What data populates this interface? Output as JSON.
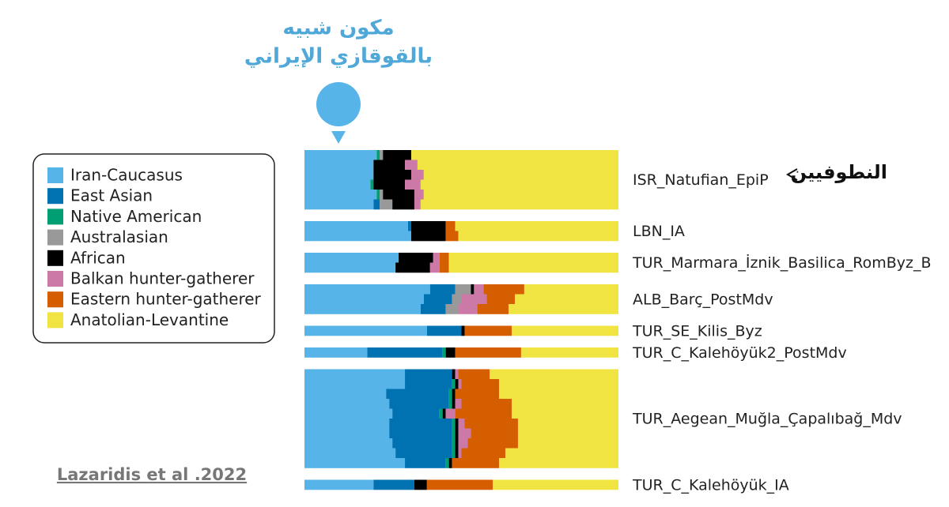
{
  "chart_data": {
    "type": "admixture",
    "annotation": [
      "مكون شبيه",
      "بالقوقازي الإيراني"
    ],
    "pointer_label": "النطوفيين",
    "source": "Lazaridis et al .2022",
    "series": [
      {
        "name": "Iran-Caucasus",
        "color": "#56b4e9"
      },
      {
        "name": "East Asian",
        "color": "#0072b2"
      },
      {
        "name": "Native American",
        "color": "#009e73"
      },
      {
        "name": "Australasian",
        "color": "#999999"
      },
      {
        "name": "African",
        "color": "#000000"
      },
      {
        "name": "Balkan hunter-gatherer",
        "color": "#cc79a7"
      },
      {
        "name": "Eastern hunter-gatherer",
        "color": "#d55e00"
      },
      {
        "name": "Anatolian-Levantine",
        "color": "#f0e442"
      }
    ],
    "groups": [
      {
        "label": "ISR_Natufian_EpiP",
        "rows": [
          [
            23,
            0,
            1,
            1,
            9,
            0,
            0,
            66
          ],
          [
            22,
            0,
            0,
            0,
            10,
            4,
            0,
            64
          ],
          [
            22,
            0,
            0,
            0,
            12,
            4,
            0,
            62
          ],
          [
            21,
            0,
            1,
            0,
            10,
            5,
            0,
            63
          ],
          [
            23,
            0,
            1,
            1,
            10,
            3,
            0,
            62
          ],
          [
            22,
            2,
            0,
            4,
            7,
            2,
            0,
            63
          ]
        ]
      },
      {
        "label": "LBN_IA",
        "rows": [
          [
            33,
            1,
            0,
            0,
            11,
            0,
            3,
            52
          ],
          [
            34,
            0,
            0,
            0,
            11,
            0,
            4,
            51
          ]
        ]
      },
      {
        "label": "TUR_Marmara_İznik_Basilica_RomByz_B",
        "rows": [
          [
            30,
            0,
            0,
            0,
            11,
            2,
            3,
            54
          ],
          [
            29,
            0,
            0,
            0,
            11,
            3,
            3,
            54
          ]
        ]
      },
      {
        "label": "ALB_Barç_PostMdv",
        "rows": [
          [
            40,
            8,
            0,
            5,
            1,
            3,
            13,
            30
          ],
          [
            38,
            9,
            0,
            3,
            0,
            8,
            9,
            33
          ],
          [
            37,
            8,
            0,
            4,
            0,
            6,
            10,
            35
          ]
        ]
      },
      {
        "label": "TUR_SE_Kilis_Byz",
        "rows": [
          [
            39,
            11,
            0,
            0,
            1,
            0,
            15,
            34
          ]
        ]
      },
      {
        "label": "TUR_C_Kalehöyük2_PostMdv",
        "rows": [
          [
            20,
            24,
            1,
            0,
            3,
            0,
            21,
            31
          ]
        ]
      },
      {
        "label": "TUR_Aegean_Muğla_Çapalıbağ_Mdv",
        "rows": [
          [
            32,
            15,
            0,
            0,
            1,
            1,
            10,
            41
          ],
          [
            32,
            15,
            1,
            0,
            1,
            1,
            12,
            38
          ],
          [
            26,
            20,
            1,
            0,
            1,
            0,
            14,
            38
          ],
          [
            27,
            19,
            1,
            0,
            1,
            2,
            16,
            34
          ],
          [
            28,
            15,
            1,
            0,
            1,
            3,
            18,
            34
          ],
          [
            27,
            20,
            1,
            0,
            1,
            2,
            17,
            32
          ],
          [
            27,
            20,
            1,
            0,
            1,
            4,
            15,
            32
          ],
          [
            28,
            19,
            1,
            0,
            1,
            3,
            16,
            32
          ],
          [
            29,
            18,
            1,
            0,
            1,
            1,
            14,
            36
          ],
          [
            32,
            13,
            1,
            0,
            1,
            0,
            15,
            38
          ]
        ]
      },
      {
        "label": "TUR_C_Kalehöyük_IA",
        "rows": [
          [
            22,
            13,
            0,
            0,
            4,
            0,
            21,
            40
          ]
        ]
      }
    ]
  }
}
